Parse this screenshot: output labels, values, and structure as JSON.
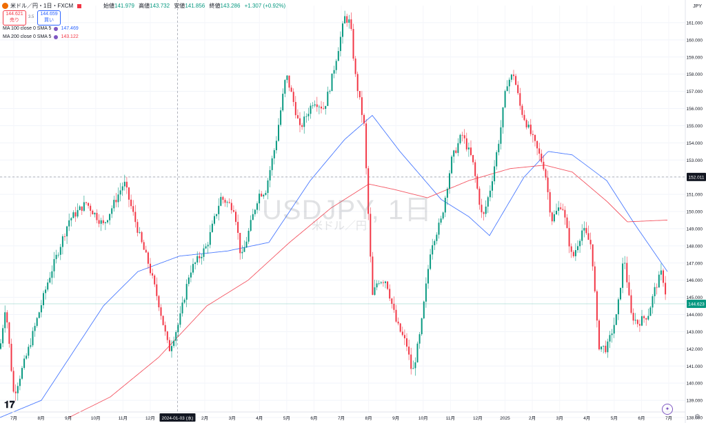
{
  "header": {
    "symbol": "米ドル／円・1日・FXCM",
    "open_label": "始値",
    "open": "141.979",
    "high_label": "高値",
    "high": "143.732",
    "low_label": "安値",
    "low": "141.856",
    "close_label": "終値",
    "close": "143.286",
    "change": "+1.307 (+0.92%)",
    "sell_price": "144.621",
    "sell_label": "売り",
    "spread": "3.5",
    "buy_price": "144.659",
    "buy_label": "買い",
    "currency": "JPY"
  },
  "indicators": [
    {
      "label": "MA 100 close 0 SMA 5",
      "value": "147.469",
      "color": "#2962ff"
    },
    {
      "label": "MA 200 close 0 SMA 5",
      "value": "143.122",
      "color": "#f23645"
    }
  ],
  "watermark": {
    "title": "USDJPY, 1日",
    "subtitle": "米ドル／円"
  },
  "colors": {
    "up": "#089981",
    "down": "#f23645",
    "ma100": "#2962ff",
    "ma200": "#f23645"
  },
  "chart_data": {
    "type": "candlestick",
    "y_axis": {
      "min": 138.0,
      "max": 162.0,
      "ticks": [
        "138.000",
        "139.000",
        "140.000",
        "141.000",
        "142.000",
        "143.000",
        "144.000",
        "145.000",
        "146.000",
        "147.000",
        "148.000",
        "149.000",
        "150.000",
        "151.000",
        "152.000",
        "153.000",
        "154.000",
        "155.000",
        "156.000",
        "157.000",
        "158.000",
        "159.000",
        "160.000",
        "161.000"
      ]
    },
    "x_axis": {
      "labels": [
        "7月",
        "8月",
        "9月",
        "10月",
        "11月",
        "12月",
        "2024-01-03 (水)",
        "2月",
        "3月",
        "4月",
        "5月",
        "6月",
        "7月",
        "8月",
        "9月",
        "10月",
        "11月",
        "12月",
        "2025",
        "2月",
        "3月",
        "4月",
        "5月",
        "6月",
        "7月"
      ]
    },
    "crosshair_price": "152.011",
    "last_price": "144.623",
    "series": [
      {
        "name": "USDJPY",
        "anchors": [
          [
            0,
            142.0
          ],
          [
            8,
            144.6
          ],
          [
            20,
            139.3
          ],
          [
            40,
            141.8
          ],
          [
            70,
            146.0
          ],
          [
            100,
            149.5
          ],
          [
            125,
            150.5
          ],
          [
            150,
            149.2
          ],
          [
            180,
            151.7
          ],
          [
            205,
            148.2
          ],
          [
            215,
            147.0
          ],
          [
            230,
            144.7
          ],
          [
            245,
            141.9
          ],
          [
            260,
            143.6
          ],
          [
            275,
            146.5
          ],
          [
            300,
            148.0
          ],
          [
            320,
            150.8
          ],
          [
            340,
            150.2
          ],
          [
            350,
            147.2
          ],
          [
            375,
            151.0
          ],
          [
            385,
            151.2
          ],
          [
            400,
            154.0
          ],
          [
            415,
            158.0
          ],
          [
            425,
            156.5
          ],
          [
            435,
            154.8
          ],
          [
            455,
            156.5
          ],
          [
            470,
            156.0
          ],
          [
            480,
            157.5
          ],
          [
            500,
            161.3
          ],
          [
            508,
            161.0
          ],
          [
            515,
            158.0
          ],
          [
            528,
            155.0
          ],
          [
            540,
            145.0
          ],
          [
            548,
            146.0
          ],
          [
            560,
            146.0
          ],
          [
            575,
            143.5
          ],
          [
            590,
            142.2
          ],
          [
            598,
            140.5
          ],
          [
            610,
            143.0
          ],
          [
            625,
            148.0
          ],
          [
            640,
            149.5
          ],
          [
            655,
            153.0
          ],
          [
            670,
            154.5
          ],
          [
            685,
            153.0
          ],
          [
            700,
            149.5
          ],
          [
            712,
            151.5
          ],
          [
            725,
            154.5
          ],
          [
            735,
            157.5
          ],
          [
            745,
            158.0
          ],
          [
            755,
            156.0
          ],
          [
            770,
            154.5
          ],
          [
            790,
            152.5
          ],
          [
            800,
            149.5
          ],
          [
            815,
            150.5
          ],
          [
            830,
            147.2
          ],
          [
            845,
            149.0
          ],
          [
            858,
            148.0
          ],
          [
            868,
            142.2
          ],
          [
            880,
            142.0
          ],
          [
            895,
            144.0
          ],
          [
            905,
            147.5
          ],
          [
            915,
            144.0
          ],
          [
            925,
            143.5
          ],
          [
            940,
            144.0
          ],
          [
            950,
            145.5
          ],
          [
            960,
            146.5
          ],
          [
            968,
            144.6
          ]
        ]
      },
      {
        "name": "MA 100",
        "anchors": [
          [
            0,
            138.0
          ],
          [
            60,
            139.0
          ],
          [
            150,
            144.5
          ],
          [
            200,
            146.5
          ],
          [
            260,
            147.4
          ],
          [
            330,
            147.7
          ],
          [
            390,
            148.2
          ],
          [
            450,
            151.8
          ],
          [
            500,
            154.2
          ],
          [
            540,
            155.6
          ],
          [
            580,
            153.5
          ],
          [
            640,
            150.7
          ],
          [
            680,
            149.7
          ],
          [
            710,
            148.6
          ],
          [
            760,
            152.0
          ],
          [
            795,
            153.5
          ],
          [
            830,
            153.3
          ],
          [
            880,
            151.8
          ],
          [
            920,
            149.3
          ],
          [
            968,
            146.5
          ]
        ]
      },
      {
        "name": "MA 200",
        "anchors": [
          [
            100,
            138.0
          ],
          [
            160,
            139.2
          ],
          [
            230,
            141.5
          ],
          [
            300,
            144.5
          ],
          [
            360,
            146.0
          ],
          [
            420,
            148.2
          ],
          [
            480,
            150.2
          ],
          [
            535,
            151.6
          ],
          [
            570,
            151.3
          ],
          [
            620,
            150.8
          ],
          [
            680,
            151.8
          ],
          [
            740,
            152.5
          ],
          [
            790,
            152.7
          ],
          [
            830,
            152.3
          ],
          [
            880,
            150.6
          ],
          [
            910,
            149.4
          ],
          [
            968,
            149.5
          ]
        ]
      }
    ]
  }
}
